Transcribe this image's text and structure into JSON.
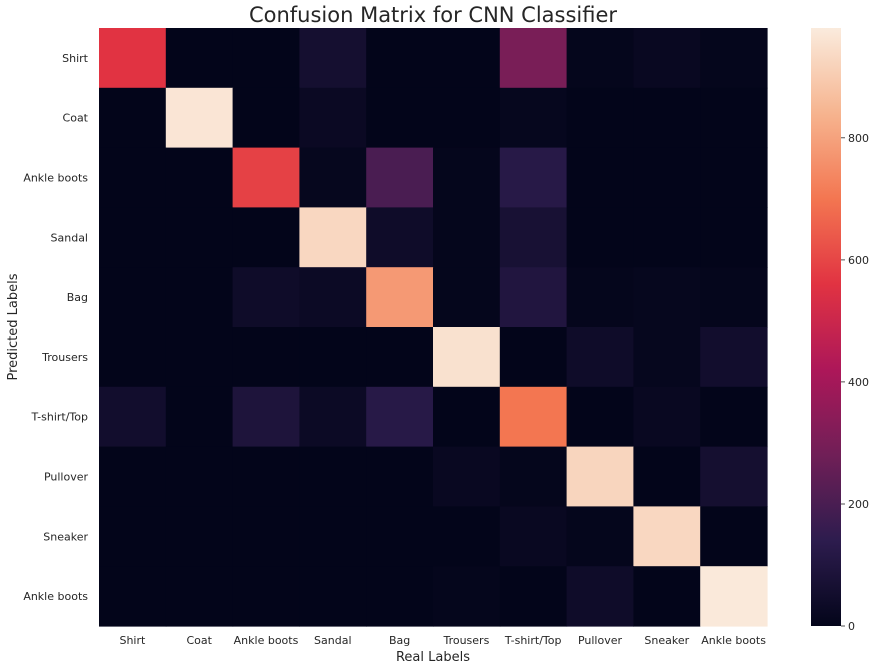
{
  "chart_data": {
    "type": "heatmap",
    "title": "Confusion Matrix for CNN Classifier",
    "xlabel": "Real Labels",
    "ylabel": "Predicted Labels",
    "x_categories": [
      "Shirt",
      "Coat",
      "Ankle boots",
      "Sandal",
      "Bag",
      "Trousers",
      "T-shirt/Top",
      "Pullover",
      "Sneaker",
      "Ankle boots"
    ],
    "y_categories": [
      "Shirt",
      "Coat",
      "Ankle boots",
      "Sandal",
      "Bag",
      "Trousers",
      "T-shirt/Top",
      "Pullover",
      "Sneaker",
      "Ankle boots"
    ],
    "values": [
      [
        560,
        0,
        0,
        60,
        0,
        0,
        300,
        5,
        20,
        5
      ],
      [
        0,
        965,
        0,
        25,
        0,
        0,
        10,
        0,
        0,
        0
      ],
      [
        0,
        0,
        590,
        10,
        200,
        5,
        120,
        0,
        0,
        0
      ],
      [
        0,
        0,
        0,
        930,
        40,
        5,
        70,
        0,
        0,
        0
      ],
      [
        0,
        0,
        40,
        30,
        780,
        5,
        100,
        5,
        10,
        5
      ],
      [
        0,
        0,
        0,
        0,
        0,
        955,
        0,
        40,
        10,
        50
      ],
      [
        50,
        0,
        90,
        30,
        120,
        0,
        700,
        0,
        20,
        0
      ],
      [
        0,
        0,
        0,
        0,
        0,
        20,
        5,
        925,
        0,
        60
      ],
      [
        0,
        0,
        0,
        0,
        0,
        0,
        20,
        5,
        930,
        0
      ],
      [
        0,
        0,
        0,
        0,
        0,
        5,
        0,
        40,
        0,
        975
      ]
    ],
    "colorbar": {
      "min": 0,
      "max": 980,
      "ticks": [
        0,
        200,
        400,
        600,
        800
      ]
    },
    "colormap": [
      "#03051a",
      "#2d1c4e",
      "#701f57",
      "#ad1759",
      "#e13342",
      "#f37651",
      "#f6b48f",
      "#faebdd"
    ],
    "grid": false,
    "legend": "colorbar-right"
  }
}
